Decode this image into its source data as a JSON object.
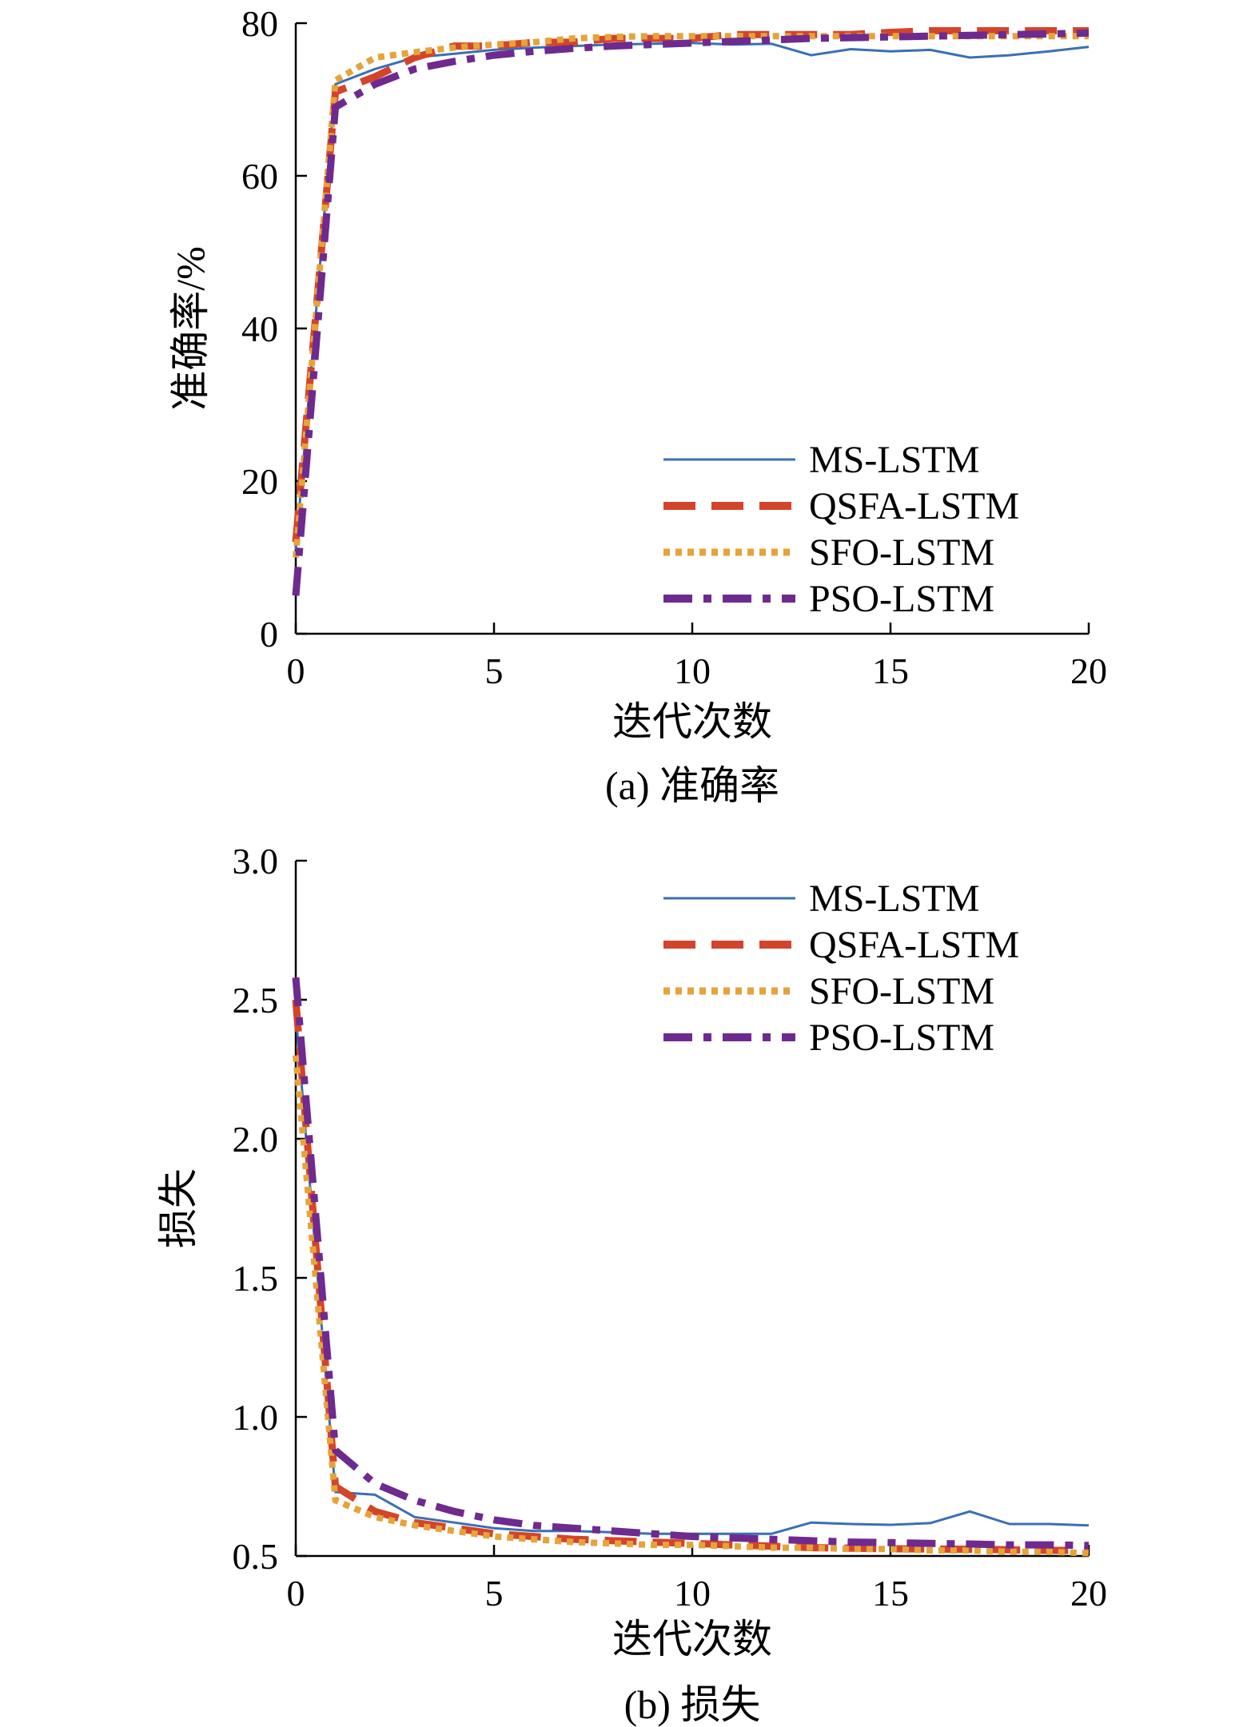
{
  "chart_data": [
    {
      "type": "line",
      "caption": "(a) 准确率",
      "xlabel": "迭代次数",
      "ylabel": "准确率/%",
      "xlim": [
        0,
        20
      ],
      "ylim": [
        0,
        80
      ],
      "xticks": [
        0,
        5,
        10,
        15,
        20
      ],
      "yticks": [
        0,
        20,
        40,
        60,
        80
      ],
      "legend_position": "bottom-right",
      "x": [
        0,
        1,
        2,
        3,
        4,
        5,
        6,
        7,
        8,
        9,
        10,
        11,
        12,
        13,
        14,
        15,
        16,
        17,
        18,
        19,
        20
      ],
      "series": [
        {
          "name": "MS-LSTM",
          "color": "#3a6fb5",
          "style": "solid",
          "values": [
            11,
            72,
            74,
            75.5,
            76,
            76.5,
            76.8,
            77,
            77.2,
            77.3,
            77.4,
            77.2,
            77.3,
            75.8,
            76.6,
            76.3,
            76.5,
            75.5,
            75.8,
            76.3,
            76.9
          ]
        },
        {
          "name": "QSFA-LSTM",
          "color": "#d2452a",
          "style": "dashed",
          "values": [
            12,
            71,
            73,
            75.5,
            77,
            77,
            77.5,
            77.5,
            78,
            78,
            78,
            78.5,
            78.5,
            78.5,
            78.5,
            78.8,
            79,
            79,
            79,
            79,
            79
          ]
        },
        {
          "name": "SFO-LSTM",
          "color": "#e6a33a",
          "style": "dotted",
          "values": [
            10,
            72.5,
            75.5,
            76.2,
            76.8,
            77.2,
            77.5,
            78,
            78.2,
            78.3,
            78.3,
            78.3,
            78.3,
            78.3,
            78.3,
            78.3,
            78.3,
            78.3,
            78.3,
            78.3,
            78.3
          ]
        },
        {
          "name": "PSO-LSTM",
          "color": "#6e2a8f",
          "style": "dashdot",
          "values": [
            5,
            69,
            72,
            74,
            75,
            75.8,
            76.3,
            76.7,
            77,
            77.2,
            77.4,
            77.6,
            77.8,
            78,
            78.1,
            78.2,
            78.3,
            78.4,
            78.5,
            78.6,
            78.7
          ]
        }
      ]
    },
    {
      "type": "line",
      "caption": "(b) 损失",
      "xlabel": "迭代次数",
      "ylabel": "损失",
      "xlim": [
        0,
        20
      ],
      "ylim": [
        0.5,
        3.0
      ],
      "xticks": [
        0,
        5,
        10,
        15,
        20
      ],
      "yticks": [
        0.5,
        1.0,
        1.5,
        2.0,
        2.5,
        3.0
      ],
      "legend_position": "top-right",
      "x": [
        0,
        1,
        2,
        3,
        4,
        5,
        6,
        7,
        8,
        9,
        10,
        11,
        12,
        13,
        14,
        15,
        16,
        17,
        18,
        19,
        20
      ],
      "series": [
        {
          "name": "MS-LSTM",
          "color": "#3a6fb5",
          "style": "solid",
          "values": [
            2.45,
            0.73,
            0.72,
            0.64,
            0.62,
            0.6,
            0.59,
            0.59,
            0.585,
            0.58,
            0.58,
            0.58,
            0.58,
            0.62,
            0.615,
            0.612,
            0.618,
            0.66,
            0.615,
            0.615,
            0.61
          ]
        },
        {
          "name": "QSFA-LSTM",
          "color": "#d2452a",
          "style": "dashed",
          "values": [
            2.5,
            0.75,
            0.66,
            0.62,
            0.6,
            0.58,
            0.57,
            0.56,
            0.555,
            0.55,
            0.545,
            0.54,
            0.535,
            0.53,
            0.528,
            0.526,
            0.525,
            0.524,
            0.522,
            0.52,
            0.52
          ]
        },
        {
          "name": "SFO-LSTM",
          "color": "#e6a33a",
          "style": "dotted",
          "values": [
            2.3,
            0.7,
            0.64,
            0.61,
            0.59,
            0.57,
            0.56,
            0.55,
            0.545,
            0.54,
            0.54,
            0.535,
            0.53,
            0.53,
            0.525,
            0.525,
            0.52,
            0.52,
            0.515,
            0.515,
            0.51
          ]
        },
        {
          "name": "PSO-LSTM",
          "color": "#6e2a8f",
          "style": "dashdot",
          "values": [
            2.58,
            0.88,
            0.76,
            0.7,
            0.66,
            0.63,
            0.61,
            0.6,
            0.59,
            0.58,
            0.57,
            0.565,
            0.56,
            0.555,
            0.55,
            0.548,
            0.545,
            0.543,
            0.54,
            0.54,
            0.538
          ]
        }
      ]
    }
  ]
}
